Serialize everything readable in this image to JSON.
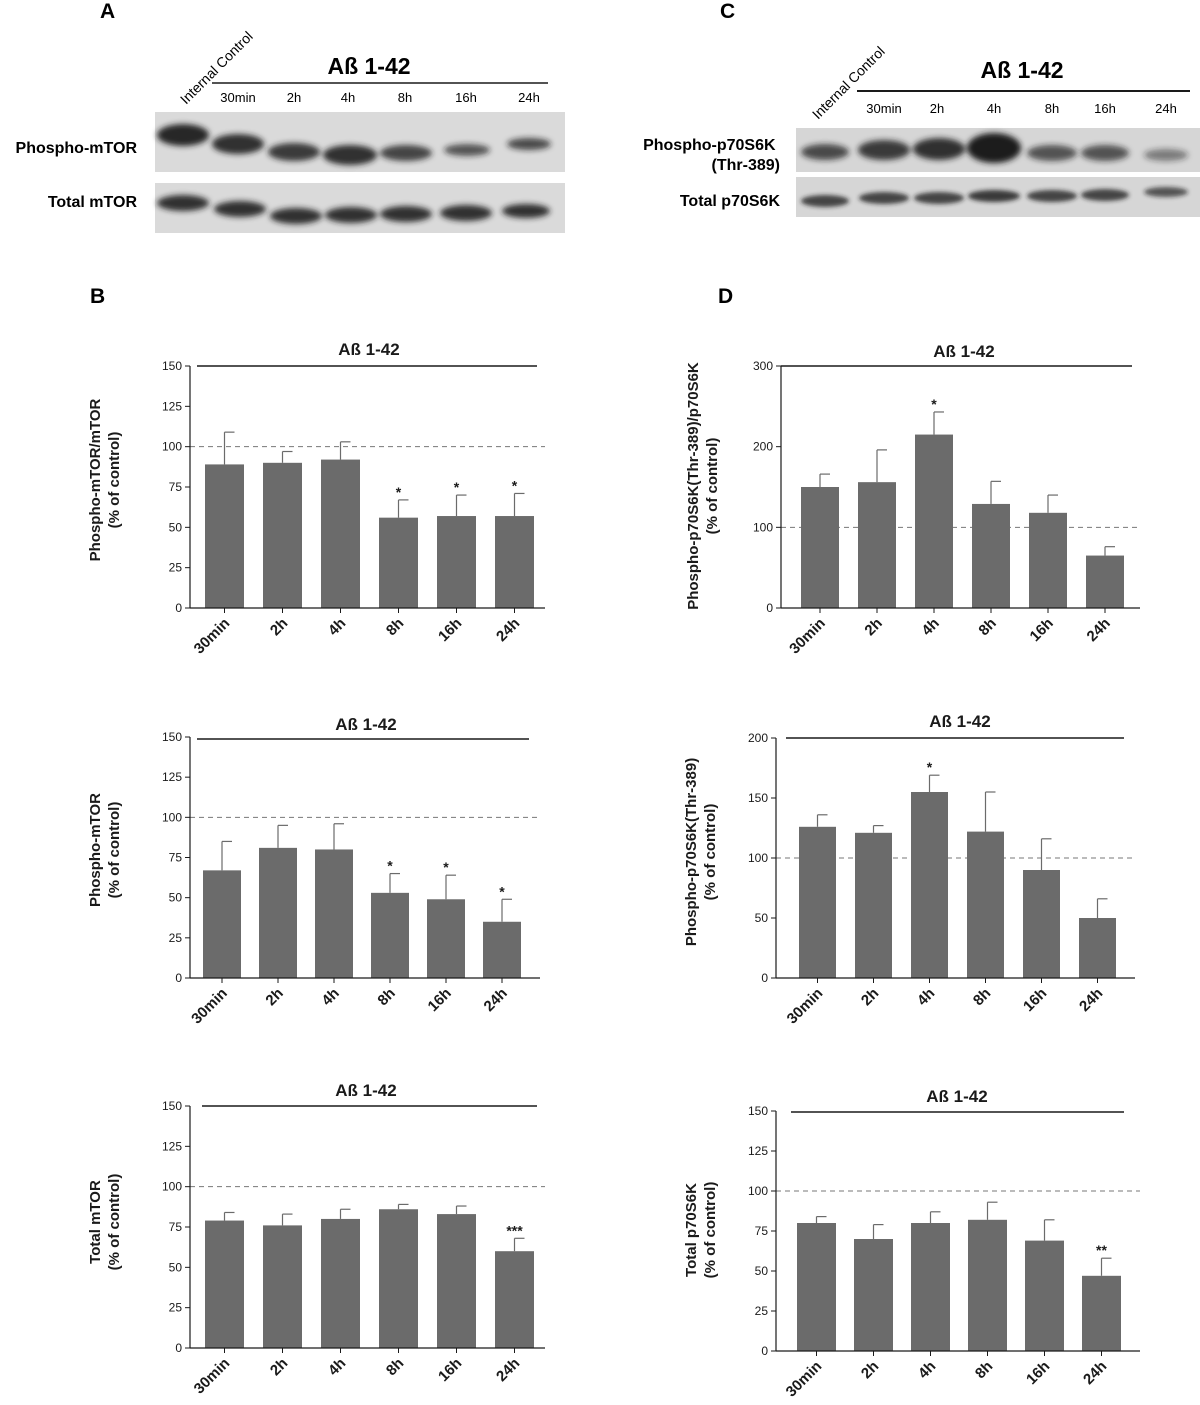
{
  "panel_letters": {
    "a": "A",
    "b": "B",
    "c": "C",
    "d": "D"
  },
  "blots": {
    "left": {
      "ref_lane": "Internal Control",
      "treatment": "Aß 1-42",
      "lanes": [
        "30min",
        "2h",
        "4h",
        "8h",
        "16h",
        "24h"
      ],
      "row_labels": [
        "Phospho-mTOR",
        "Total mTOR"
      ]
    },
    "right": {
      "ref_lane": "Internal Control",
      "treatment": "Aß 1-42",
      "lanes": [
        "30min",
        "2h",
        "4h",
        "8h",
        "16h",
        "24h"
      ],
      "row_labels": [
        "Phospho-p70S6K\n(Thr-389)",
        "Total p70S6K"
      ]
    }
  },
  "chart_data": [
    {
      "type": "bar",
      "title": "Aß 1-42",
      "ylabel": [
        "Phospho-mTOR/mTOR",
        "(% of control)"
      ],
      "categories": [
        "30min",
        "2h",
        "4h",
        "8h",
        "16h",
        "24h"
      ],
      "values": [
        89,
        90,
        92,
        56,
        57,
        57
      ],
      "errors": [
        20,
        7,
        11,
        11,
        13,
        14
      ],
      "significance": [
        "",
        "",
        "",
        "*",
        "*",
        "*"
      ],
      "ylim": [
        0,
        150
      ],
      "yticks": [
        0,
        25,
        50,
        75,
        100,
        125,
        150
      ],
      "reference_line": 100
    },
    {
      "type": "bar",
      "title": "Aß 1-42",
      "ylabel": [
        "Phospho-mTOR",
        "(% of control)"
      ],
      "categories": [
        "30min",
        "2h",
        "4h",
        "8h",
        "16h",
        "24h"
      ],
      "values": [
        67,
        81,
        80,
        53,
        49,
        35
      ],
      "errors": [
        18,
        14,
        16,
        12,
        15,
        14
      ],
      "significance": [
        "",
        "",
        "",
        "*",
        "*",
        "*"
      ],
      "ylim": [
        0,
        150
      ],
      "yticks": [
        0,
        25,
        50,
        75,
        100,
        125,
        150
      ],
      "reference_line": 100
    },
    {
      "type": "bar",
      "title": "Aß 1-42",
      "ylabel": [
        "Total mTOR",
        "(% of control)"
      ],
      "categories": [
        "30min",
        "2h",
        "4h",
        "8h",
        "16h",
        "24h"
      ],
      "values": [
        79,
        76,
        80,
        86,
        83,
        60
      ],
      "errors": [
        5,
        7,
        6,
        3,
        5,
        8
      ],
      "significance": [
        "",
        "",
        "",
        "",
        "",
        "***"
      ],
      "ylim": [
        0,
        150
      ],
      "yticks": [
        0,
        25,
        50,
        75,
        100,
        125,
        150
      ],
      "reference_line": 100
    },
    {
      "type": "bar",
      "title": "Aß 1-42",
      "ylabel": [
        "Phospho-p70S6K(Thr-389)/p70S6K",
        "(% of control)"
      ],
      "categories": [
        "30min",
        "2h",
        "4h",
        "8h",
        "16h",
        "24h"
      ],
      "values": [
        150,
        156,
        215,
        129,
        118,
        65
      ],
      "errors": [
        16,
        40,
        28,
        28,
        22,
        11
      ],
      "significance": [
        "",
        "",
        "*",
        "",
        "",
        ""
      ],
      "ylim": [
        0,
        300
      ],
      "yticks": [
        0,
        100,
        200,
        300
      ],
      "reference_line": 100
    },
    {
      "type": "bar",
      "title": "Aß 1-42",
      "ylabel": [
        "Phospho-p70S6K(Thr-389)",
        "(% of control)"
      ],
      "categories": [
        "30min",
        "2h",
        "4h",
        "8h",
        "16h",
        "24h"
      ],
      "values": [
        126,
        121,
        155,
        122,
        90,
        50
      ],
      "errors": [
        10,
        6,
        14,
        33,
        26,
        16
      ],
      "significance": [
        "",
        "",
        "*",
        "",
        "",
        ""
      ],
      "ylim": [
        0,
        200
      ],
      "yticks": [
        0,
        50,
        100,
        150,
        200
      ],
      "reference_line": 100
    },
    {
      "type": "bar",
      "title": "Aß 1-42",
      "ylabel": [
        "Total p70S6K",
        "(% of control)"
      ],
      "categories": [
        "30min",
        "2h",
        "4h",
        "8h",
        "16h",
        "24h"
      ],
      "values": [
        80,
        70,
        80,
        82,
        69,
        47
      ],
      "errors": [
        4,
        9,
        7,
        11,
        13,
        11
      ],
      "significance": [
        "",
        "",
        "",
        "",
        "",
        "**"
      ],
      "ylim": [
        0,
        150
      ],
      "yticks": [
        0,
        25,
        50,
        75,
        100,
        125,
        150
      ],
      "reference_line": 100
    }
  ],
  "colors": {
    "bar": "#6b6b6b",
    "text": "#1a1a1a",
    "axis": "#1a1a1a",
    "reference_line": "#777777"
  }
}
